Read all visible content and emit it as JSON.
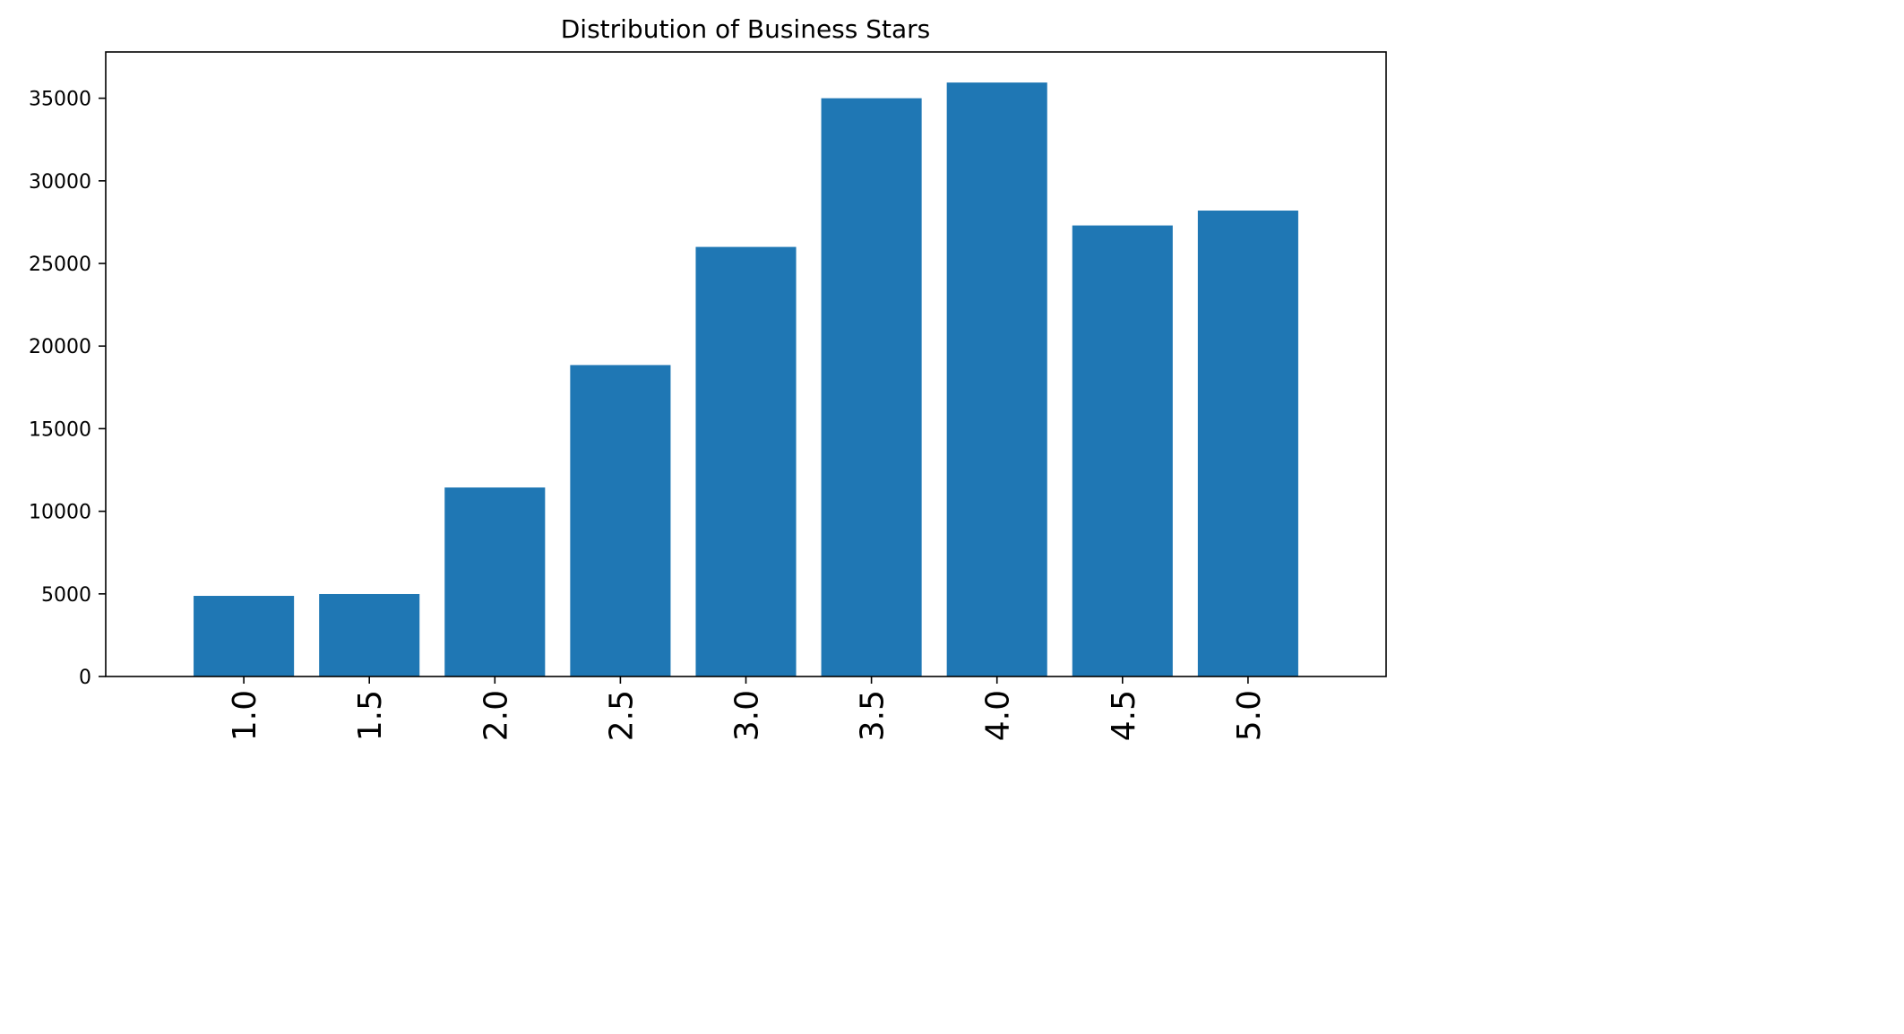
{
  "chart_data": {
    "type": "bar",
    "title": "Distribution of Business Stars",
    "xlabel": "",
    "ylabel": "",
    "categories": [
      "1.0",
      "1.5",
      "2.0",
      "2.5",
      "3.0",
      "3.5",
      "4.0",
      "4.5",
      "5.0"
    ],
    "values": [
      4880,
      4990,
      11440,
      18850,
      26000,
      35000,
      35950,
      27300,
      28200
    ],
    "ylim": [
      0,
      37800
    ],
    "yticks": [
      0,
      5000,
      10000,
      15000,
      20000,
      25000,
      30000,
      35000
    ],
    "ytick_labels": [
      "0",
      "5000",
      "10000",
      "15000",
      "20000",
      "25000",
      "30000",
      "35000"
    ],
    "bar_color": "#1f77b4",
    "grid": false,
    "legend": "none"
  }
}
